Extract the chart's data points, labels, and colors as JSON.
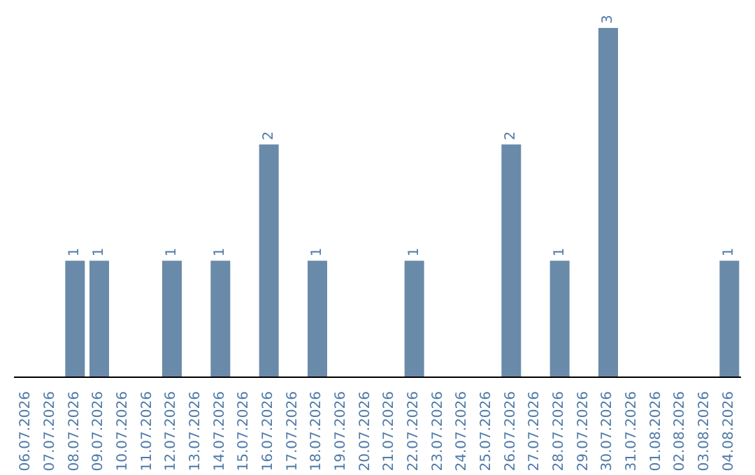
{
  "chart_data": {
    "type": "bar",
    "categories": [
      "06.07.2026",
      "07.07.2026",
      "08.07.2026",
      "09.07.2026",
      "10.07.2026",
      "11.07.2026",
      "12.07.2026",
      "13.07.2026",
      "14.07.2026",
      "15.07.2026",
      "16.07.2026",
      "17.07.2026",
      "18.07.2026",
      "19.07.2026",
      "20.07.2026",
      "21.07.2026",
      "22.07.2026",
      "23.07.2026",
      "24.07.2026",
      "25.07.2026",
      "26.07.2026",
      "27.07.2026",
      "28.07.2026",
      "29.07.2026",
      "30.07.2026",
      "31.07.2026",
      "01.08.2026",
      "02.08.2026",
      "03.08.2026",
      "04.08.2026"
    ],
    "values": [
      0,
      0,
      1,
      1,
      0,
      0,
      1,
      0,
      1,
      0,
      2,
      0,
      1,
      0,
      0,
      0,
      1,
      0,
      0,
      0,
      2,
      0,
      1,
      0,
      3,
      0,
      0,
      0,
      0,
      1
    ],
    "value_labels": [
      null,
      null,
      "1",
      "1",
      null,
      null,
      "1",
      null,
      "1",
      null,
      "2",
      null,
      "1",
      null,
      null,
      null,
      "1",
      null,
      null,
      null,
      "2",
      null,
      "1",
      null,
      "3",
      null,
      null,
      null,
      null,
      "1"
    ],
    "color": "#6a8aaa",
    "tick_labels": "x",
    "grid": false,
    "legend": false
  }
}
